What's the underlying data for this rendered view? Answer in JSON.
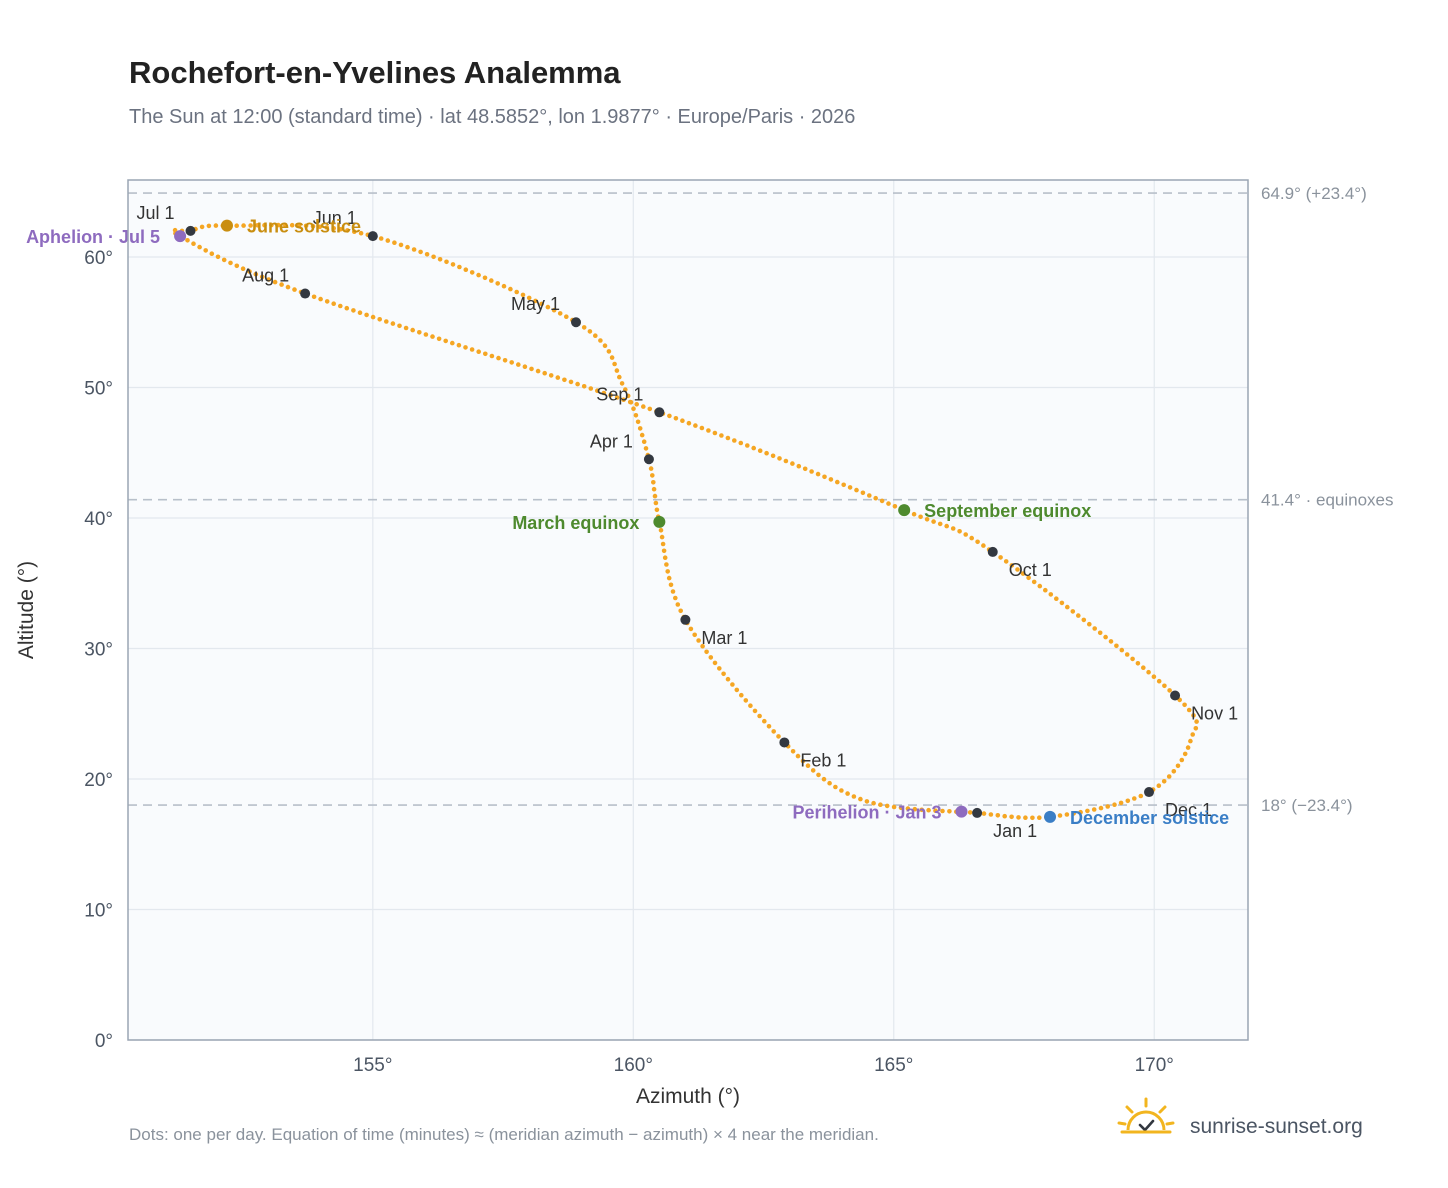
{
  "colors": {
    "curve": "#f5a623",
    "date_dot": "#333840",
    "aphelion": "#8e6bbf",
    "perihelion": "#8e6bbf",
    "june_solstice": "#c98e10",
    "december_solstice": "#3a7ec6",
    "equinox": "#4e8a2e",
    "plot_bg": "#f9fbfd",
    "grid": "#e3e8ee",
    "frame": "#9aa5b3",
    "refline": "#b8c0ca",
    "brand_sun": "#f2b51f"
  },
  "chart_data": {
    "type": "scatter",
    "title": "Rochefort-en-Yvelines Analemma",
    "subtitle": "The Sun at 12:00 (standard time) · lat 48.5852°, lon 1.9877° · Europe/Paris · 2026",
    "xlabel": "Azimuth (°)",
    "ylabel": "Altitude (°)",
    "xlim": [
      150.3,
      171.8
    ],
    "ylim": [
      0,
      65.9
    ],
    "xticks": [
      {
        "value": 155,
        "label": "155°"
      },
      {
        "value": 160,
        "label": "160°"
      },
      {
        "value": 165,
        "label": "165°"
      },
      {
        "value": 170,
        "label": "170°"
      }
    ],
    "yticks": [
      {
        "value": 0,
        "label": "0°"
      },
      {
        "value": 10,
        "label": "10°"
      },
      {
        "value": 20,
        "label": "20°"
      },
      {
        "value": 30,
        "label": "30°"
      },
      {
        "value": 40,
        "label": "40°"
      },
      {
        "value": 50,
        "label": "50°"
      },
      {
        "value": 60,
        "label": "60°"
      }
    ],
    "grid": true,
    "reference_lines": [
      {
        "y": 64.9,
        "label": "64.9° (+23.4°)"
      },
      {
        "y": 41.4,
        "label": "41.4° · equinoxes"
      },
      {
        "y": 18.0,
        "label": "18° (−23.4°)"
      }
    ],
    "curve_points": [
      {
        "az": 166.6,
        "alt": 17.4
      },
      {
        "az": 164.4,
        "alt": 18.4
      },
      {
        "az": 162.9,
        "alt": 22.8
      },
      {
        "az": 161.0,
        "alt": 32.2
      },
      {
        "az": 160.5,
        "alt": 39.7
      },
      {
        "az": 160.3,
        "alt": 44.5
      },
      {
        "az": 159.8,
        "alt": 50.2
      },
      {
        "az": 158.9,
        "alt": 55.0
      },
      {
        "az": 155.0,
        "alt": 61.6
      },
      {
        "az": 152.2,
        "alt": 62.4
      },
      {
        "az": 151.5,
        "alt": 62.0
      },
      {
        "az": 151.3,
        "alt": 61.6
      },
      {
        "az": 153.7,
        "alt": 57.2
      },
      {
        "az": 160.5,
        "alt": 48.1
      },
      {
        "az": 165.2,
        "alt": 40.6
      },
      {
        "az": 166.9,
        "alt": 37.4
      },
      {
        "az": 170.4,
        "alt": 26.4
      },
      {
        "az": 170.7,
        "alt": 23.0
      },
      {
        "az": 169.9,
        "alt": 19.0
      },
      {
        "az": 168.0,
        "alt": 17.1
      },
      {
        "az": 166.6,
        "alt": 17.4
      }
    ],
    "date_markers": [
      {
        "label": "Jan 1",
        "az": 166.6,
        "alt": 17.4,
        "anchor": "below-right"
      },
      {
        "label": "Feb 1",
        "az": 162.9,
        "alt": 22.8,
        "anchor": "below-right"
      },
      {
        "label": "Mar 1",
        "az": 161.0,
        "alt": 32.2,
        "anchor": "below-right"
      },
      {
        "label": "Apr 1",
        "az": 160.3,
        "alt": 44.5,
        "anchor": "above-left"
      },
      {
        "label": "May 1",
        "az": 158.9,
        "alt": 55.0,
        "anchor": "above-left"
      },
      {
        "label": "Jun 1",
        "az": 155.0,
        "alt": 61.6,
        "anchor": "above-left"
      },
      {
        "label": "Jul 1",
        "az": 151.5,
        "alt": 62.0,
        "anchor": "above-left"
      },
      {
        "label": "Aug 1",
        "az": 153.7,
        "alt": 57.2,
        "anchor": "above-left"
      },
      {
        "label": "Sep 1",
        "az": 160.5,
        "alt": 48.1,
        "anchor": "above-left"
      },
      {
        "label": "Oct 1",
        "az": 166.9,
        "alt": 37.4,
        "anchor": "below-right"
      },
      {
        "label": "Nov 1",
        "az": 170.4,
        "alt": 26.4,
        "anchor": "below-right"
      },
      {
        "label": "Dec 1",
        "az": 169.9,
        "alt": 19.0,
        "anchor": "below-right"
      }
    ],
    "events": [
      {
        "label": "Aphelion · Jul 5",
        "az": 151.3,
        "alt": 61.6,
        "color_key": "aphelion",
        "anchor": "left"
      },
      {
        "label": "June solstice",
        "az": 152.2,
        "alt": 62.4,
        "color_key": "june_solstice",
        "anchor": "right"
      },
      {
        "label": "March equinox",
        "az": 160.5,
        "alt": 39.7,
        "color_key": "equinox",
        "anchor": "left"
      },
      {
        "label": "September equinox",
        "az": 165.2,
        "alt": 40.6,
        "color_key": "equinox",
        "anchor": "right"
      },
      {
        "label": "Perihelion · Jan 3",
        "az": 166.3,
        "alt": 17.5,
        "color_key": "perihelion",
        "anchor": "left"
      },
      {
        "label": "December solstice",
        "az": 168.0,
        "alt": 17.1,
        "color_key": "december_solstice",
        "anchor": "right"
      }
    ]
  },
  "footnote": "Dots: one per day. Equation of time (minutes) ≈ (meridian azimuth − azimuth) × 4 near the meridian.",
  "brand": {
    "text": "sunrise-sunset.org",
    "icon": "sun-check-icon"
  }
}
